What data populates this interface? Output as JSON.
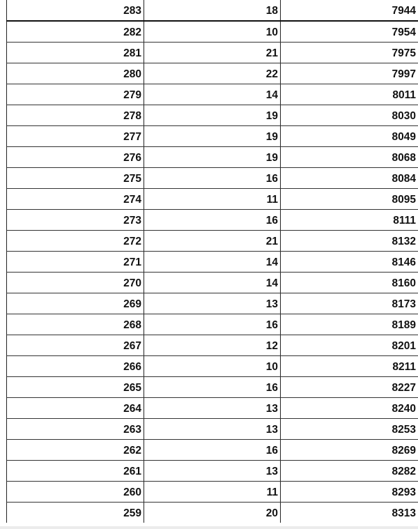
{
  "table": {
    "rows": [
      [
        "283",
        "18",
        "7944"
      ],
      [
        "282",
        "10",
        "7954"
      ],
      [
        "281",
        "21",
        "7975"
      ],
      [
        "280",
        "22",
        "7997"
      ],
      [
        "279",
        "14",
        "8011"
      ],
      [
        "278",
        "19",
        "8030"
      ],
      [
        "277",
        "19",
        "8049"
      ],
      [
        "276",
        "19",
        "8068"
      ],
      [
        "275",
        "16",
        "8084"
      ],
      [
        "274",
        "11",
        "8095"
      ],
      [
        "273",
        "16",
        "8111"
      ],
      [
        "272",
        "21",
        "8132"
      ],
      [
        "271",
        "14",
        "8146"
      ],
      [
        "270",
        "14",
        "8160"
      ],
      [
        "269",
        "13",
        "8173"
      ],
      [
        "268",
        "16",
        "8189"
      ],
      [
        "267",
        "12",
        "8201"
      ],
      [
        "266",
        "10",
        "8211"
      ],
      [
        "265",
        "16",
        "8227"
      ],
      [
        "264",
        "13",
        "8240"
      ],
      [
        "263",
        "13",
        "8253"
      ],
      [
        "262",
        "16",
        "8269"
      ],
      [
        "261",
        "13",
        "8282"
      ],
      [
        "260",
        "11",
        "8293"
      ],
      [
        "259",
        "20",
        "8313"
      ]
    ]
  }
}
